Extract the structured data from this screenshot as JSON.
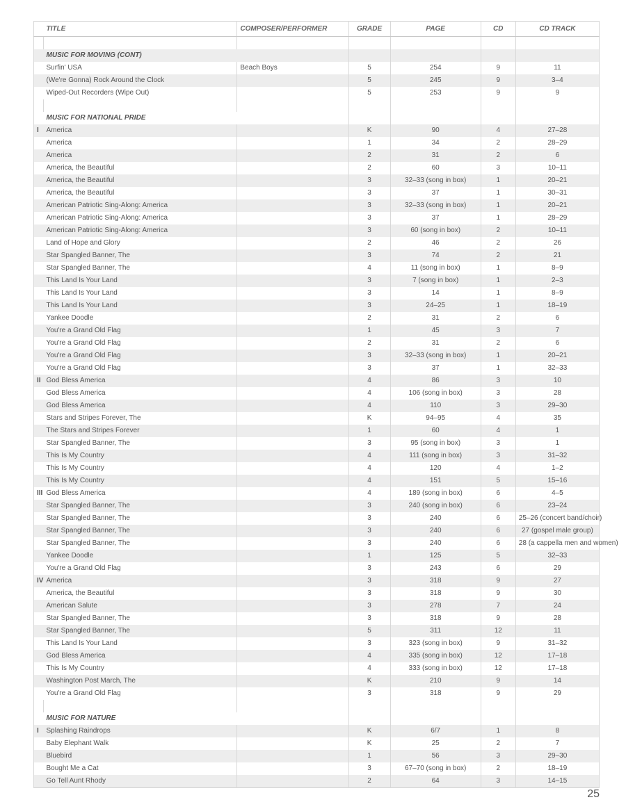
{
  "header": {
    "title": "TITLE",
    "composer": "COMPOSER/PERFORMER",
    "grade": "GRADE",
    "page": "PAGE",
    "cd": "CD",
    "track": "CD TRACK"
  },
  "pageNumber": "25",
  "rows": [
    {
      "type": "blank"
    },
    {
      "type": "section",
      "shade": true,
      "title": "MUSIC FOR MOVING (CONT)"
    },
    {
      "type": "data",
      "title": "Surfin' USA",
      "composer": "Beach Boys",
      "grade": "5",
      "page": "254",
      "cd": "9",
      "track": "11"
    },
    {
      "type": "data",
      "shade": true,
      "title": "(We're Gonna) Rock Around the Clock",
      "grade": "5",
      "page": "245",
      "cd": "9",
      "track": "3–4"
    },
    {
      "type": "data",
      "title": "Wiped-Out Recorders (Wipe Out)",
      "grade": "5",
      "page": "253",
      "cd": "9",
      "track": "9"
    },
    {
      "type": "blank"
    },
    {
      "type": "section",
      "title": "MUSIC FOR NATIONAL PRIDE"
    },
    {
      "type": "data",
      "shade": true,
      "mark": "I",
      "title": "America",
      "grade": "K",
      "page": "90",
      "cd": "4",
      "track": "27–28"
    },
    {
      "type": "data",
      "title": "America",
      "grade": "1",
      "page": "34",
      "cd": "2",
      "track": "28–29"
    },
    {
      "type": "data",
      "shade": true,
      "title": "America",
      "grade": "2",
      "page": "31",
      "cd": "2",
      "track": "6"
    },
    {
      "type": "data",
      "title": "America, the Beautiful",
      "grade": "2",
      "page": "60",
      "cd": "3",
      "track": "10–11"
    },
    {
      "type": "data",
      "shade": true,
      "title": "America, the Beautiful",
      "grade": "3",
      "page": "32–33 (song in box)",
      "cd": "1",
      "track": "20–21"
    },
    {
      "type": "data",
      "title": "America, the Beautiful",
      "grade": "3",
      "page": "37",
      "cd": "1",
      "track": "30–31"
    },
    {
      "type": "data",
      "shade": true,
      "title": "American Patriotic Sing-Along: America",
      "grade": "3",
      "page": "32–33 (song in box)",
      "cd": "1",
      "track": "20–21"
    },
    {
      "type": "data",
      "title": "American Patriotic Sing-Along: America",
      "grade": "3",
      "page": "37",
      "cd": "1",
      "track": "28–29"
    },
    {
      "type": "data",
      "shade": true,
      "title": "American Patriotic Sing-Along: America",
      "grade": "3",
      "page": "60 (song in box)",
      "cd": "2",
      "track": "10–11"
    },
    {
      "type": "data",
      "title": "Land of Hope and Glory",
      "grade": "2",
      "page": "46",
      "cd": "2",
      "track": "26"
    },
    {
      "type": "data",
      "shade": true,
      "title": "Star Spangled Banner, The",
      "grade": "3",
      "page": "74",
      "cd": "2",
      "track": "21"
    },
    {
      "type": "data",
      "title": "Star Spangled Banner, The",
      "grade": "4",
      "page": "11 (song in box)",
      "cd": "1",
      "track": "8–9"
    },
    {
      "type": "data",
      "shade": true,
      "title": "This Land Is Your Land",
      "grade": "3",
      "page": "7 (song in box)",
      "cd": "1",
      "track": "2–3"
    },
    {
      "type": "data",
      "title": "This Land Is Your Land",
      "grade": "3",
      "page": "14",
      "cd": "1",
      "track": "8–9"
    },
    {
      "type": "data",
      "shade": true,
      "title": "This Land Is Your Land",
      "grade": "3",
      "page": "24–25",
      "cd": "1",
      "track": "18–19"
    },
    {
      "type": "data",
      "title": "Yankee Doodle",
      "grade": "2",
      "page": "31",
      "cd": "2",
      "track": "6"
    },
    {
      "type": "data",
      "shade": true,
      "title": "You're a Grand Old Flag",
      "grade": "1",
      "page": "45",
      "cd": "3",
      "track": "7"
    },
    {
      "type": "data",
      "title": "You're a Grand Old Flag",
      "grade": "2",
      "page": "31",
      "cd": "2",
      "track": "6"
    },
    {
      "type": "data",
      "shade": true,
      "title": "You're a Grand Old Flag",
      "grade": "3",
      "page": "32–33 (song in box)",
      "cd": "1",
      "track": "20–21"
    },
    {
      "type": "data",
      "title": "You're a Grand Old Flag",
      "grade": "3",
      "page": "37",
      "cd": "1",
      "track": "32–33"
    },
    {
      "type": "data",
      "shade": true,
      "mark": "II",
      "title": "God Bless America",
      "grade": "4",
      "page": "86",
      "cd": "3",
      "track": "10"
    },
    {
      "type": "data",
      "title": "God Bless America",
      "grade": "4",
      "page": "106 (song in box)",
      "cd": "3",
      "track": "28"
    },
    {
      "type": "data",
      "shade": true,
      "title": "God Bless America",
      "grade": "4",
      "page": "110",
      "cd": "3",
      "track": "29–30"
    },
    {
      "type": "data",
      "title": "Stars and Stripes Forever, The",
      "grade": "K",
      "page": "94–95",
      "cd": "4",
      "track": "35"
    },
    {
      "type": "data",
      "shade": true,
      "title": "The Stars and Stripes Forever",
      "grade": "1",
      "page": "60",
      "cd": "4",
      "track": "1"
    },
    {
      "type": "data",
      "title": "Star Spangled Banner, The",
      "grade": "3",
      "page": "95 (song in box)",
      "cd": "3",
      "track": "1"
    },
    {
      "type": "data",
      "shade": true,
      "title": "This Is My Country",
      "grade": "4",
      "page": "111 (song in box)",
      "cd": "3",
      "track": "31–32"
    },
    {
      "type": "data",
      "title": "This Is My Country",
      "grade": "4",
      "page": "120",
      "cd": "4",
      "track": "1–2"
    },
    {
      "type": "data",
      "shade": true,
      "title": "This Is My Country",
      "grade": "4",
      "page": "151",
      "cd": "5",
      "track": "15–16"
    },
    {
      "type": "data",
      "mark": "III",
      "title": "God Bless America",
      "grade": "4",
      "page": "189 (song in box)",
      "cd": "6",
      "track": "4–5"
    },
    {
      "type": "data",
      "shade": true,
      "title": "Star Spangled Banner, The",
      "grade": "3",
      "page": "240 (song in box)",
      "cd": "6",
      "track": "23–24"
    },
    {
      "type": "data",
      "title": "Star Spangled Banner, The",
      "grade": "3",
      "page": "240",
      "cd": "6",
      "track": "25–26 (concert band/choir)"
    },
    {
      "type": "data",
      "shade": true,
      "title": "Star Spangled Banner, The",
      "grade": "3",
      "page": "240",
      "cd": "6",
      "track": "27 (gospel male group)"
    },
    {
      "type": "data",
      "title": "Star Spangled Banner, The",
      "grade": "3",
      "page": "240",
      "cd": "6",
      "track": "28 (a cappella men and women)"
    },
    {
      "type": "data",
      "shade": true,
      "title": "Yankee Doodle",
      "grade": "1",
      "page": "125",
      "cd": "5",
      "track": "32–33"
    },
    {
      "type": "data",
      "title": "You're a Grand Old Flag",
      "grade": "3",
      "page": "243",
      "cd": "6",
      "track": "29"
    },
    {
      "type": "data",
      "shade": true,
      "mark": "IV",
      "title": "America",
      "grade": "3",
      "page": "318",
      "cd": "9",
      "track": "27"
    },
    {
      "type": "data",
      "title": "America, the Beautiful",
      "grade": "3",
      "page": "318",
      "cd": "9",
      "track": "30"
    },
    {
      "type": "data",
      "shade": true,
      "title": "American Salute",
      "grade": "3",
      "page": "278",
      "cd": "7",
      "track": "24"
    },
    {
      "type": "data",
      "title": "Star Spangled Banner, The",
      "grade": "3",
      "page": "318",
      "cd": "9",
      "track": "28"
    },
    {
      "type": "data",
      "shade": true,
      "title": "Star Spangled Banner, The",
      "grade": "5",
      "page": "311",
      "cd": "12",
      "track": "11"
    },
    {
      "type": "data",
      "title": "This Land Is Your Land",
      "grade": "3",
      "page": "323 (song in box)",
      "cd": "9",
      "track": "31–32"
    },
    {
      "type": "data",
      "shade": true,
      "title": "God Bless America",
      "grade": "4",
      "page": "335 (song in box)",
      "cd": "12",
      "track": "17–18"
    },
    {
      "type": "data",
      "title": "This Is My Country",
      "grade": "4",
      "page": "333 (song in box)",
      "cd": "12",
      "track": "17–18"
    },
    {
      "type": "data",
      "shade": true,
      "title": "Washington Post March, The",
      "grade": "K",
      "page": "210",
      "cd": "9",
      "track": "14"
    },
    {
      "type": "data",
      "title": "You're a Grand Old Flag",
      "grade": "3",
      "page": "318",
      "cd": "9",
      "track": "29"
    },
    {
      "type": "blank"
    },
    {
      "type": "section",
      "title": "MUSIC FOR NATURE"
    },
    {
      "type": "data",
      "shade": true,
      "mark": "I",
      "title": "Splashing Raindrops",
      "grade": "K",
      "page": "6/7",
      "cd": "1",
      "track": "8"
    },
    {
      "type": "data",
      "title": "Baby Elephant Walk",
      "grade": "K",
      "page": "25",
      "cd": "2",
      "track": "7"
    },
    {
      "type": "data",
      "shade": true,
      "title": "Bluebird",
      "grade": "1",
      "page": "56",
      "cd": "3",
      "track": "29–30"
    },
    {
      "type": "data",
      "title": "Bought Me a Cat",
      "grade": "3",
      "page": "67–70 (song in box)",
      "cd": "2",
      "track": "18–19"
    },
    {
      "type": "data",
      "shade": true,
      "title": "Go Tell Aunt Rhody",
      "grade": "2",
      "page": "64",
      "cd": "3",
      "track": "14–15"
    }
  ]
}
